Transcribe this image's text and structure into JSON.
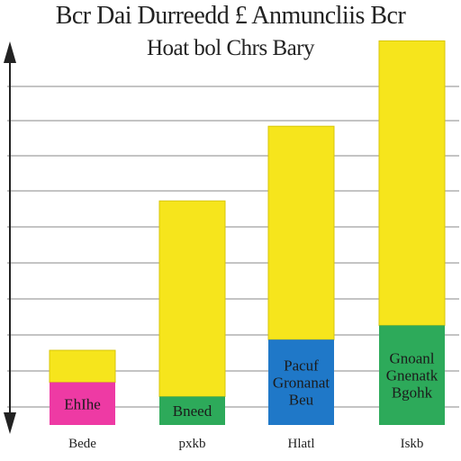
{
  "title_line1": "Bcr Dai Durreedd £ Anmuncliis Bcr",
  "title_line2": "Hoat bol Chrs Bary",
  "colors": {
    "yellow": "#f6e51c",
    "yellow_stroke": "#d8c60a",
    "pink": "#ee3aa4",
    "green": "#2daa5a",
    "blue": "#1f78c8",
    "grid": "#8a8a8a",
    "axis": "#222222",
    "segment_text": "#1b1b1b"
  },
  "chart_data": {
    "type": "bar",
    "stacked": true,
    "grid": true,
    "axis": "y axis with arrowheads at top and bottom",
    "ylim": [
      0,
      11
    ],
    "categories": [
      "Bede",
      "pxkb",
      "Hlatl",
      "Iskb"
    ],
    "series": [
      {
        "color": "pink/green/blue/green per bar",
        "segment_labels": [
          "EhIhe",
          "Bneed",
          "Pacuf Gronanat Beu",
          "Gnoanl Gnenatk Bgohk"
        ],
        "segment_colors": [
          "#ee3aa4",
          "#2daa5a",
          "#1f78c8",
          "#2daa5a"
        ],
        "values": [
          1.2,
          0.8,
          2.4,
          2.8
        ]
      },
      {
        "color": "#f6e51c",
        "values": [
          0.9,
          5.5,
          6.0,
          8.0
        ]
      }
    ]
  }
}
